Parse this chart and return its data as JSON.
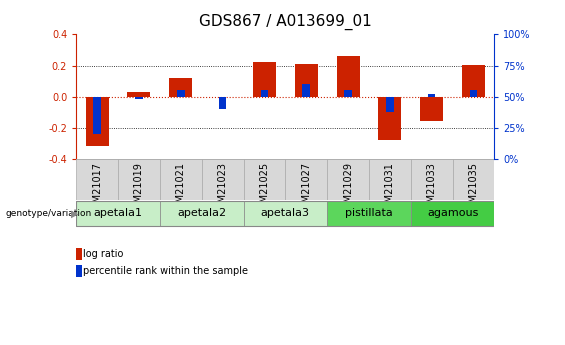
{
  "title": "GDS867 / A013699_01",
  "samples": [
    "GSM21017",
    "GSM21019",
    "GSM21021",
    "GSM21023",
    "GSM21025",
    "GSM21027",
    "GSM21029",
    "GSM21031",
    "GSM21033",
    "GSM21035"
  ],
  "log_ratio": [
    -0.315,
    0.03,
    0.12,
    0.0,
    0.225,
    0.21,
    0.26,
    -0.28,
    -0.16,
    0.205
  ],
  "pct_rank_raw": [
    20,
    48,
    55,
    40,
    55,
    60,
    55,
    38,
    52,
    55
  ],
  "groups": [
    {
      "label": "apetala1",
      "samples": [
        0,
        1
      ],
      "color": "#c8eec8"
    },
    {
      "label": "apetala2",
      "samples": [
        2,
        3
      ],
      "color": "#c8eec8"
    },
    {
      "label": "apetala3",
      "samples": [
        4,
        5
      ],
      "color": "#c8eec8"
    },
    {
      "label": "pistillata",
      "samples": [
        6,
        7
      ],
      "color": "#5cd65c"
    },
    {
      "label": "agamous",
      "samples": [
        8,
        9
      ],
      "color": "#44cc44"
    }
  ],
  "bar_color_red": "#cc2200",
  "bar_color_blue": "#0033cc",
  "ylim": [
    -0.4,
    0.4
  ],
  "yticks_left": [
    -0.4,
    -0.2,
    0.0,
    0.2,
    0.4
  ],
  "hline_dotted_color": "#cc2200",
  "dotted_color": "black",
  "title_fontsize": 11,
  "tick_fontsize": 7,
  "label_fontsize": 8,
  "sample_bg_color": "#d8d8d8",
  "legend_text_fontsize": 7
}
